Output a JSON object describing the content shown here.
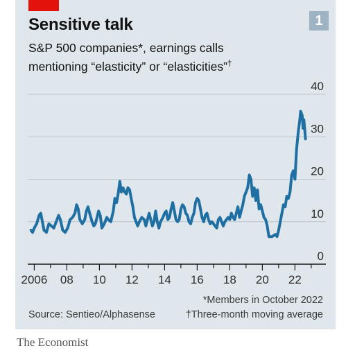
{
  "header": {
    "title": "Sensitive talk",
    "subtitle_line1": "S&P 500 companies*, earnings calls",
    "subtitle_line2": "mentioning “elasticity” or “elasticities”",
    "subtitle_mark": "†",
    "badge": "1"
  },
  "footer": {
    "source": "Source: Sentieo/Alphasense",
    "note_members": "*Members in October 2022",
    "note_average": "†Three-month moving average",
    "brand": "The Economist"
  },
  "colors": {
    "background": "#dfe7ec",
    "line": "#1f6fa3",
    "accent": "#e3120b",
    "badge": "#9eb4c4",
    "grid": "#b9c5cd"
  },
  "chart_data": {
    "type": "line",
    "title": "Sensitive talk",
    "subtitle": "S&P 500 companies*, earnings calls mentioning “elasticity” or “elasticities”†",
    "xlabel": "",
    "ylabel": "",
    "xlim": [
      2005.6,
      2023.9
    ],
    "ylim": [
      0,
      40
    ],
    "yticks": [
      0,
      10,
      20,
      30,
      40
    ],
    "ytick_labels": [
      "0",
      "10",
      "20",
      "30",
      "40"
    ],
    "xticks": [
      2006,
      2008,
      2010,
      2012,
      2014,
      2016,
      2018,
      2020,
      2022
    ],
    "xtick_labels": [
      "2006",
      "08",
      "10",
      "12",
      "14",
      "16",
      "18",
      "20",
      "22"
    ],
    "grid": true,
    "legend": "none",
    "series": [
      {
        "values_note": "x = year, y = count",
        "points": [
          [
            2005.8,
            8
          ],
          [
            2005.9,
            7.5
          ],
          [
            2006.0,
            8.5
          ],
          [
            2006.15,
            9.5
          ],
          [
            2006.3,
            11.5
          ],
          [
            2006.4,
            12
          ],
          [
            2006.5,
            10
          ],
          [
            2006.6,
            8
          ],
          [
            2006.75,
            7.5
          ],
          [
            2006.9,
            9.5
          ],
          [
            2007.05,
            9
          ],
          [
            2007.2,
            8.5
          ],
          [
            2007.35,
            10
          ],
          [
            2007.5,
            11.5
          ],
          [
            2007.6,
            10.5
          ],
          [
            2007.75,
            8
          ],
          [
            2007.9,
            7.5
          ],
          [
            2008.05,
            8.5
          ],
          [
            2008.2,
            10.5
          ],
          [
            2008.35,
            11
          ],
          [
            2008.5,
            12
          ],
          [
            2008.6,
            14
          ],
          [
            2008.7,
            13
          ],
          [
            2008.8,
            10.5
          ],
          [
            2008.95,
            9.5
          ],
          [
            2009.1,
            10.5
          ],
          [
            2009.2,
            12.5
          ],
          [
            2009.3,
            13.5
          ],
          [
            2009.4,
            12
          ],
          [
            2009.55,
            10
          ],
          [
            2009.65,
            9
          ],
          [
            2009.75,
            9.5
          ],
          [
            2009.85,
            11
          ],
          [
            2009.95,
            12.5
          ],
          [
            2010.05,
            11.5
          ],
          [
            2010.15,
            8.5
          ],
          [
            2010.3,
            9.5
          ],
          [
            2010.45,
            11
          ],
          [
            2010.55,
            10.5
          ],
          [
            2010.7,
            10
          ],
          [
            2010.85,
            12.5
          ],
          [
            2010.95,
            15.5
          ],
          [
            2011.05,
            14.5
          ],
          [
            2011.15,
            16.5
          ],
          [
            2011.25,
            19.5
          ],
          [
            2011.35,
            17
          ],
          [
            2011.45,
            18
          ],
          [
            2011.55,
            17
          ],
          [
            2011.65,
            16.5
          ],
          [
            2011.75,
            18
          ],
          [
            2011.85,
            17.5
          ],
          [
            2011.95,
            15.5
          ],
          [
            2012.05,
            13.5
          ],
          [
            2012.15,
            11
          ],
          [
            2012.25,
            10
          ],
          [
            2012.35,
            9
          ],
          [
            2012.45,
            10
          ],
          [
            2012.6,
            11
          ],
          [
            2012.75,
            10.5
          ],
          [
            2012.85,
            9
          ],
          [
            2012.95,
            10.5
          ],
          [
            2013.05,
            12
          ],
          [
            2013.15,
            10.5
          ],
          [
            2013.25,
            9
          ],
          [
            2013.35,
            10
          ],
          [
            2013.45,
            12.5
          ],
          [
            2013.55,
            10
          ],
          [
            2013.65,
            8.5
          ],
          [
            2013.75,
            10
          ],
          [
            2013.9,
            11
          ],
          [
            2014.0,
            12
          ],
          [
            2014.1,
            12.5
          ],
          [
            2014.2,
            10.5
          ],
          [
            2014.3,
            11
          ],
          [
            2014.4,
            13
          ],
          [
            2014.5,
            14.5
          ],
          [
            2014.6,
            12.5
          ],
          [
            2014.7,
            10.5
          ],
          [
            2014.8,
            10
          ],
          [
            2014.9,
            10.5
          ],
          [
            2015.0,
            13
          ],
          [
            2015.1,
            14
          ],
          [
            2015.2,
            13.5
          ],
          [
            2015.3,
            12
          ],
          [
            2015.4,
            11.5
          ],
          [
            2015.5,
            10
          ],
          [
            2015.6,
            9.5
          ],
          [
            2015.7,
            11
          ],
          [
            2015.8,
            12
          ],
          [
            2015.9,
            14.5
          ],
          [
            2016.0,
            15.5
          ],
          [
            2016.1,
            15
          ],
          [
            2016.2,
            13
          ],
          [
            2016.3,
            11
          ],
          [
            2016.4,
            10
          ],
          [
            2016.5,
            11.5
          ],
          [
            2016.6,
            12
          ],
          [
            2016.7,
            10.5
          ],
          [
            2016.8,
            9.5
          ],
          [
            2016.9,
            10
          ],
          [
            2017.0,
            9.5
          ],
          [
            2017.1,
            9
          ],
          [
            2017.2,
            8.5
          ],
          [
            2017.3,
            10.5
          ],
          [
            2017.4,
            11
          ],
          [
            2017.5,
            10
          ],
          [
            2017.6,
            9
          ],
          [
            2017.7,
            10
          ],
          [
            2017.8,
            10.5
          ],
          [
            2017.9,
            11
          ],
          [
            2018.0,
            10.5
          ],
          [
            2018.1,
            12
          ],
          [
            2018.2,
            11
          ],
          [
            2018.3,
            10.5
          ],
          [
            2018.4,
            12
          ],
          [
            2018.5,
            13.5
          ],
          [
            2018.6,
            11
          ],
          [
            2018.7,
            12.5
          ],
          [
            2018.8,
            14
          ],
          [
            2018.9,
            16
          ],
          [
            2019.0,
            17
          ],
          [
            2019.1,
            18
          ],
          [
            2019.2,
            21
          ],
          [
            2019.3,
            20
          ],
          [
            2019.4,
            16
          ],
          [
            2019.5,
            18
          ],
          [
            2019.6,
            15
          ],
          [
            2019.7,
            17.5
          ],
          [
            2019.8,
            13
          ],
          [
            2019.9,
            14
          ],
          [
            2020.0,
            12.5
          ],
          [
            2020.1,
            11
          ],
          [
            2020.2,
            10.5
          ],
          [
            2020.3,
            9
          ],
          [
            2020.4,
            6.5
          ],
          [
            2020.6,
            6.5
          ],
          [
            2020.8,
            7
          ],
          [
            2020.9,
            6.5
          ],
          [
            2021.0,
            8
          ],
          [
            2021.1,
            10
          ],
          [
            2021.2,
            12
          ],
          [
            2021.3,
            14
          ],
          [
            2021.4,
            13.5
          ],
          [
            2021.5,
            16
          ],
          [
            2021.6,
            15.5
          ],
          [
            2021.7,
            17
          ],
          [
            2021.8,
            21
          ],
          [
            2021.9,
            22
          ],
          [
            2022.0,
            20
          ],
          [
            2022.1,
            27
          ],
          [
            2022.2,
            31
          ],
          [
            2022.3,
            34
          ],
          [
            2022.35,
            36
          ],
          [
            2022.45,
            35
          ],
          [
            2022.5,
            32
          ],
          [
            2022.55,
            34
          ],
          [
            2022.65,
            29.5
          ]
        ]
      }
    ]
  }
}
